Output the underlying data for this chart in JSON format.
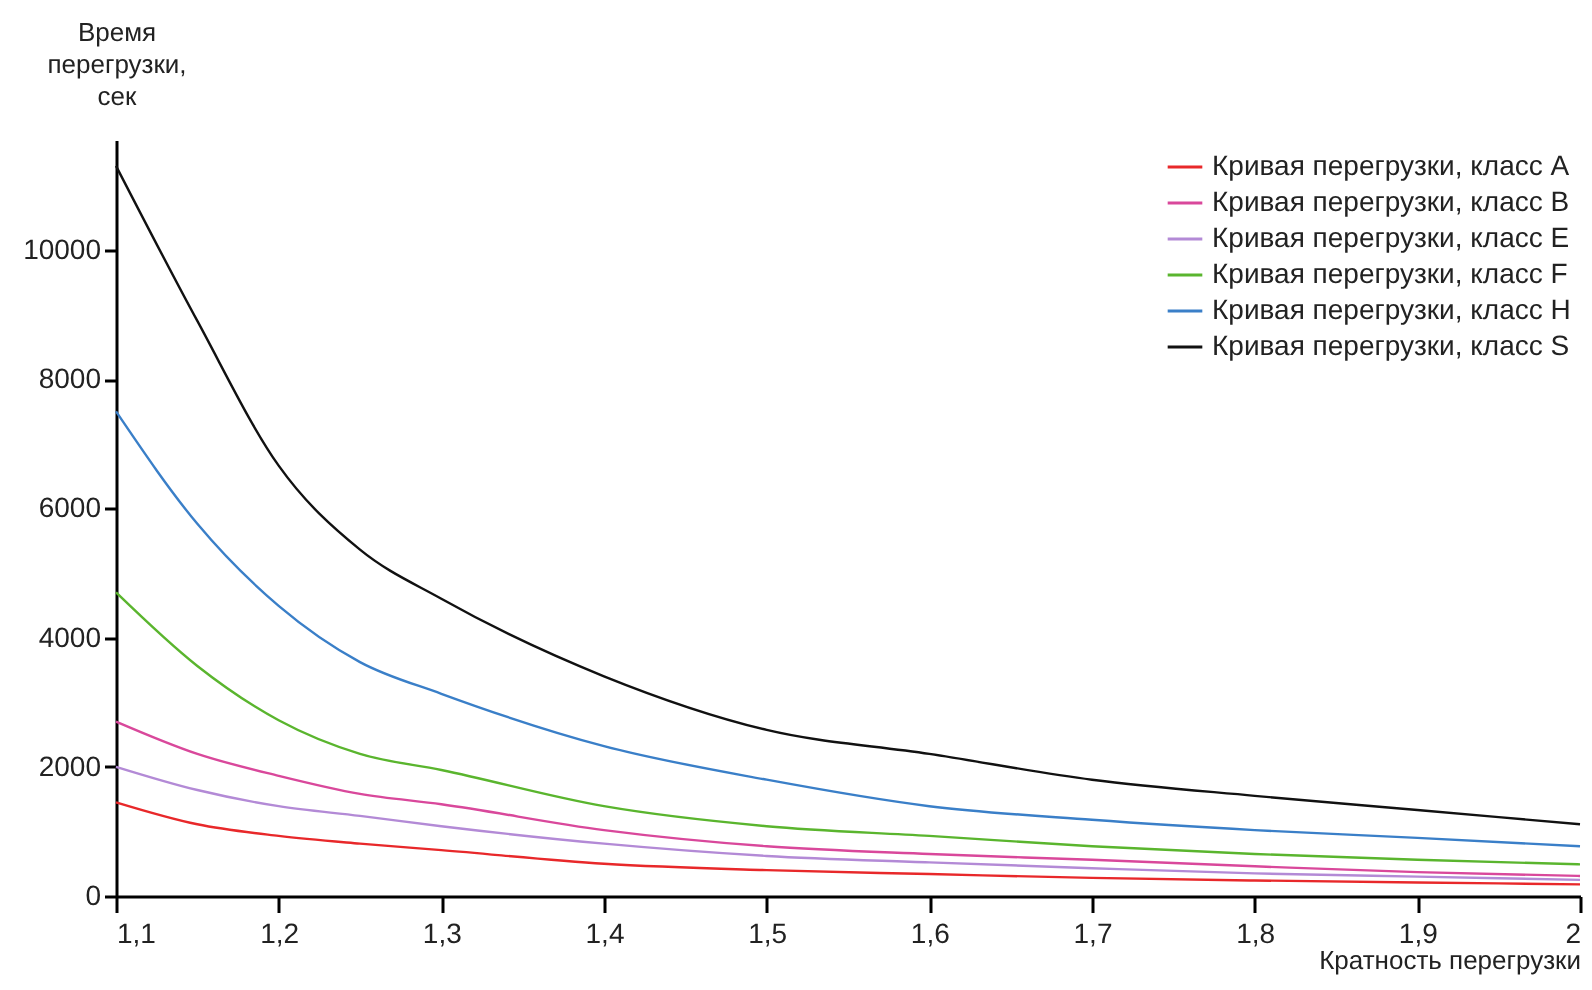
{
  "chart_data": {
    "type": "line",
    "xlabel": "Кратность перегрузки",
    "ylabel": "Время перегрузки, сек",
    "x": [
      1.1,
      1.15,
      1.2,
      1.25,
      1.3,
      1.4,
      1.5,
      1.6,
      1.7,
      1.8,
      1.9,
      2
    ],
    "series": [
      {
        "name": "Кривая перегрузки, класс A",
        "color": "#e8282a",
        "values": [
          1450,
          1110,
          930,
          810,
          710,
          500,
          400,
          340,
          280,
          240,
          210,
          180
        ]
      },
      {
        "name": "Кривая перегрузки, класс B",
        "color": "#d9489b",
        "values": [
          2700,
          2200,
          1860,
          1580,
          1420,
          1020,
          770,
          650,
          560,
          460,
          370,
          310
        ]
      },
      {
        "name": "Кривая перегрузки, класс E",
        "color": "#b38ad6",
        "values": [
          2000,
          1640,
          1390,
          1240,
          1080,
          810,
          620,
          520,
          430,
          350,
          300,
          250
        ]
      },
      {
        "name": "Кривая перегрузки, класс F",
        "color": "#5ab52e",
        "values": [
          4700,
          3560,
          2720,
          2200,
          1950,
          1390,
          1080,
          930,
          770,
          650,
          560,
          490
        ]
      },
      {
        "name": "Кривая перегрузки, класс H",
        "color": "#3a7fc8",
        "values": [
          7500,
          5760,
          4490,
          3620,
          3130,
          2320,
          1800,
          1390,
          1180,
          1020,
          900,
          770
        ]
      },
      {
        "name": "Кривая перегрузки, класс S",
        "color": "#111111",
        "values": [
          11300,
          8900,
          6660,
          5360,
          4600,
          3400,
          2570,
          2200,
          1800,
          1550,
          1330,
          1110
        ]
      }
    ],
    "xlim": [
      1.1,
      2
    ],
    "ylim": [
      0,
      11700
    ],
    "xticks": [
      {
        "value": 1.1,
        "label": "1,1"
      },
      {
        "value": 1.2,
        "label": "1,2"
      },
      {
        "value": 1.3,
        "label": "1,3"
      },
      {
        "value": 1.4,
        "label": "1,4"
      },
      {
        "value": 1.5,
        "label": "1,5"
      },
      {
        "value": 1.6,
        "label": "1,6"
      },
      {
        "value": 1.7,
        "label": "1,7"
      },
      {
        "value": 1.8,
        "label": "1,8"
      },
      {
        "value": 1.9,
        "label": "1,9"
      },
      {
        "value": 2,
        "label": "2"
      }
    ],
    "yticks": [
      0,
      2000,
      4000,
      6000,
      8000,
      10000
    ],
    "grid": false,
    "legend": "top right",
    "marker": "none",
    "line_style": "solid"
  }
}
